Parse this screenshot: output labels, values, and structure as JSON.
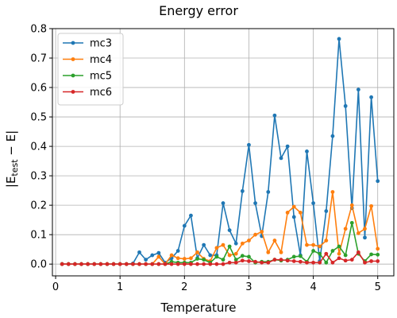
{
  "chart_data": {
    "type": "line",
    "title": "Energy error",
    "xlabel": "Temperature",
    "ylabel_parts": {
      "prefix": "|E",
      "subscript": "test",
      "suffix": " − E|"
    },
    "xlim": [
      -0.05,
      5.25
    ],
    "ylim": [
      -0.04,
      0.8
    ],
    "xticks": [
      0,
      1,
      2,
      3,
      4,
      5
    ],
    "yticks": [
      0.0,
      0.1,
      0.2,
      0.3,
      0.4,
      0.5,
      0.6,
      0.7,
      0.8
    ],
    "grid": true,
    "legend_position": "upper-left",
    "x": [
      0.1,
      0.2,
      0.3,
      0.4,
      0.5,
      0.6,
      0.7,
      0.8,
      0.9,
      1.0,
      1.1,
      1.2,
      1.3,
      1.4,
      1.5,
      1.6,
      1.7,
      1.8,
      1.9,
      2.0,
      2.1,
      2.2,
      2.3,
      2.4,
      2.5,
      2.6,
      2.7,
      2.8,
      2.9,
      3.0,
      3.1,
      3.2,
      3.3,
      3.4,
      3.5,
      3.6,
      3.7,
      3.8,
      3.9,
      4.0,
      4.1,
      4.2,
      4.3,
      4.4,
      4.5,
      4.6,
      4.7,
      4.8,
      4.9,
      5.0
    ],
    "series": [
      {
        "name": "mc3",
        "color": "#1f77b4",
        "values": [
          0,
          0,
          0,
          0,
          0,
          0,
          0,
          0,
          0,
          0,
          0,
          0.002,
          0.04,
          0.015,
          0.03,
          0.038,
          0.005,
          0.02,
          0.045,
          0.13,
          0.165,
          0.02,
          0.065,
          0.03,
          0.03,
          0.207,
          0.115,
          0.07,
          0.248,
          0.405,
          0.207,
          0.095,
          0.245,
          0.505,
          0.36,
          0.4,
          0.16,
          0.03,
          0.383,
          0.207,
          0.01,
          0.18,
          0.435,
          0.765,
          0.537,
          0.19,
          0.593,
          0.09,
          0.567,
          0.282
        ]
      },
      {
        "name": "mc4",
        "color": "#ff7f0e",
        "values": [
          0,
          0,
          0,
          0,
          0,
          0,
          0,
          0,
          0,
          0,
          0,
          0,
          0,
          0,
          0,
          0.025,
          0,
          0.03,
          0.02,
          0.018,
          0.02,
          0.04,
          0.018,
          0.01,
          0.055,
          0.065,
          0.03,
          0.035,
          0.07,
          0.08,
          0.1,
          0.11,
          0.04,
          0.08,
          0.04,
          0.175,
          0.195,
          0.175,
          0.065,
          0.065,
          0.06,
          0.08,
          0.245,
          0.035,
          0.12,
          0.2,
          0.105,
          0.12,
          0.197,
          0.052
        ]
      },
      {
        "name": "mc5",
        "color": "#2ca02c",
        "values": [
          0,
          0,
          0,
          0,
          0,
          0,
          0,
          0,
          0,
          0,
          0,
          0,
          0,
          0,
          0,
          0,
          0,
          0.008,
          0.005,
          0.005,
          0.005,
          0.018,
          0.015,
          0.005,
          0.025,
          0.015,
          0.06,
          0.015,
          0.028,
          0.025,
          0.005,
          0.008,
          0.008,
          0.015,
          0.012,
          0.015,
          0.025,
          0.027,
          0.008,
          0.045,
          0.035,
          0.005,
          0.045,
          0.06,
          0.03,
          0.14,
          0.035,
          0.01,
          0.033,
          0.032
        ]
      },
      {
        "name": "mc6",
        "color": "#d62728",
        "values": [
          0,
          0,
          0,
          0,
          0,
          0,
          0,
          0,
          0,
          0,
          0,
          0,
          0,
          0,
          0,
          0,
          0,
          0,
          0,
          0,
          0,
          0,
          0,
          0,
          0,
          0,
          0.005,
          0.005,
          0.012,
          0.01,
          0.008,
          0.005,
          0.005,
          0.015,
          0.015,
          0.012,
          0.01,
          0.008,
          0.005,
          0.005,
          0.005,
          0.035,
          0.005,
          0.02,
          0.012,
          0.015,
          0.04,
          0.005,
          0.01,
          0.01
        ]
      }
    ]
  }
}
